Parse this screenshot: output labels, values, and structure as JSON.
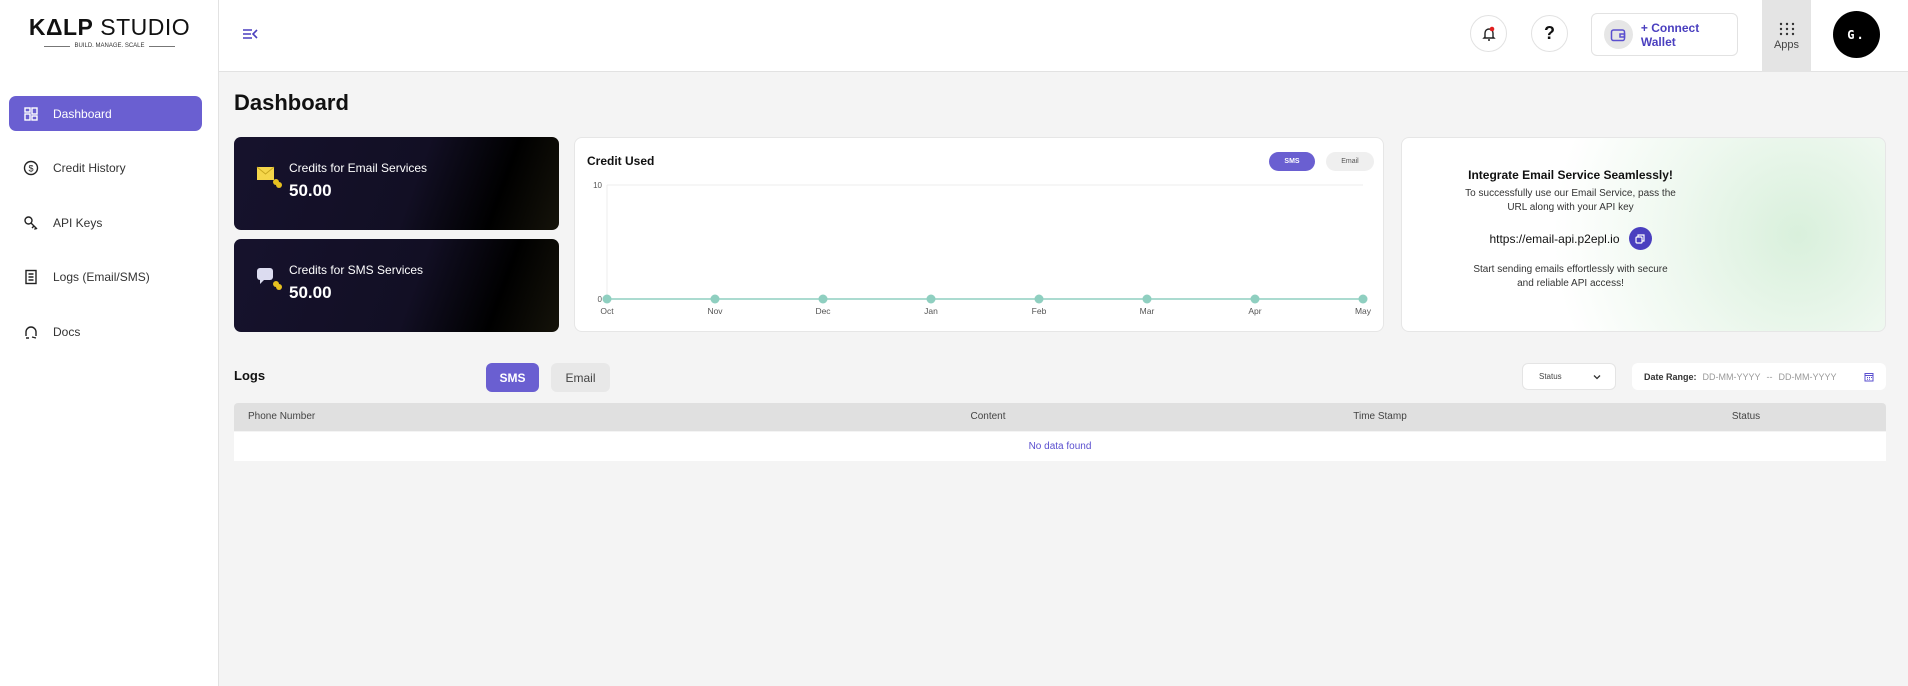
{
  "brand": {
    "name_bold": "KΔLP",
    "name_light": " STUDIO",
    "tagline": "BUILD. MANAGE. SCALE"
  },
  "sidebar": {
    "items": [
      {
        "label": "Dashboard",
        "icon": "grid-icon",
        "active": true
      },
      {
        "label": "Credit History",
        "icon": "dollar-circle-icon"
      },
      {
        "label": "API Keys",
        "icon": "key-icon"
      },
      {
        "label": "Logs (Email/SMS)",
        "icon": "document-icon"
      },
      {
        "label": "Docs",
        "icon": "docs-icon"
      }
    ]
  },
  "header": {
    "connect_wallet": "+ Connect Wallet",
    "apps": "Apps",
    "avatar": "G.",
    "help": "?",
    "notification_dot_color": "#e02020"
  },
  "page": {
    "title": "Dashboard"
  },
  "credits": [
    {
      "label": "Credits for Email Services",
      "value": "50.00"
    },
    {
      "label": "Credits for SMS Services",
      "value": "50.00"
    }
  ],
  "chart_data": {
    "type": "line",
    "title": "Credit Used",
    "categories": [
      "Oct",
      "Nov",
      "Dec",
      "Jan",
      "Feb",
      "Mar",
      "Apr",
      "May"
    ],
    "values": [
      0,
      0,
      0,
      0,
      0,
      0,
      0,
      0
    ],
    "yticks": [
      "0",
      "10"
    ],
    "ylim": [
      0,
      10
    ],
    "color": "#8fcfc0",
    "toggle": {
      "options": [
        "SMS",
        "Email"
      ],
      "selected": "SMS"
    }
  },
  "integrate": {
    "title": "Integrate Email Service Seamlessly!",
    "desc1": "To successfully use our Email Service, pass the",
    "desc2": "URL along with your API key",
    "url": "https://email-api.p2epl.io",
    "foot1": "Start sending emails effortlessly with secure",
    "foot2": "and reliable API access!"
  },
  "logs": {
    "title": "Logs",
    "tabs": [
      "SMS",
      "Email"
    ],
    "active_tab": "SMS",
    "status_select": "Status",
    "date_range_label": "Date Range:",
    "date_from_placeholder": "DD-MM-YYYY",
    "date_sep": "--",
    "date_to_placeholder": "DD-MM-YYYY",
    "columns": [
      "Phone Number",
      "Content",
      "Time Stamp",
      "Status"
    ],
    "empty": "No data found"
  },
  "colors": {
    "accent": "#6a5fd1"
  }
}
